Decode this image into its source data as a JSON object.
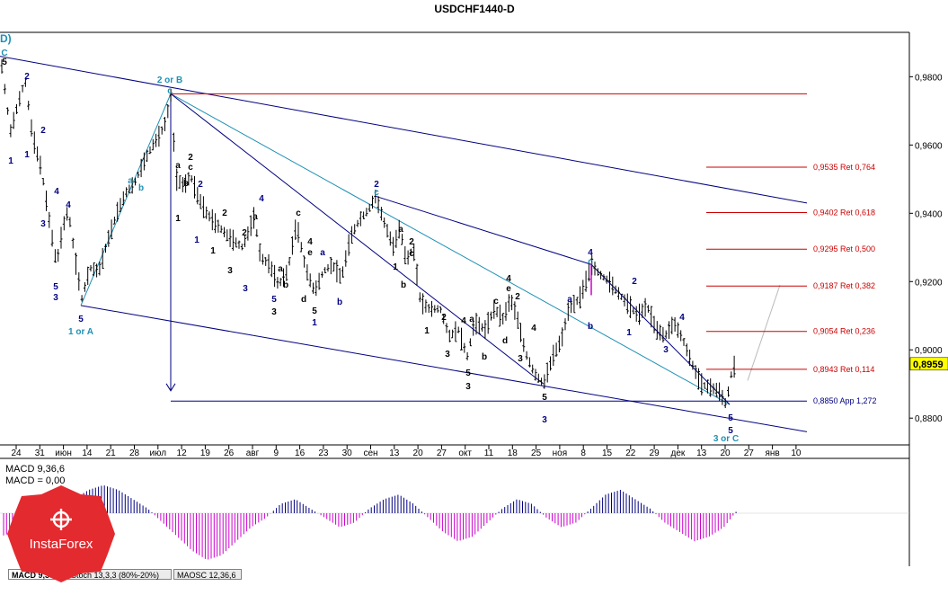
{
  "title": "USDCHF1440-D",
  "corner_label": "D)",
  "price_axis": {
    "ticks": [
      "0,9800",
      "0,9600",
      "0,9400",
      "0,9200",
      "0,9000",
      "0,8800"
    ],
    "tick_values": [
      0.98,
      0.96,
      0.94,
      0.92,
      0.9,
      0.88
    ],
    "current_price": "0,8959",
    "current_value": 0.8959
  },
  "time_axis": [
    "24",
    "31",
    "июн",
    "14",
    "21",
    "28",
    "июл",
    "12",
    "19",
    "26",
    "авг",
    "9",
    "16",
    "23",
    "30",
    "сен",
    "13",
    "20",
    "27",
    "окт",
    "11",
    "18",
    "25",
    "ноя",
    "8",
    "15",
    "22",
    "29",
    "дек",
    "13",
    "20",
    "27",
    "янв",
    "10"
  ],
  "fib_levels": [
    {
      "value": 0.9535,
      "label": "0,9535 Ret 0,764"
    },
    {
      "value": 0.9402,
      "label": "0,9402 Ret 0,618"
    },
    {
      "value": 0.9295,
      "label": "0,9295 Ret 0,500"
    },
    {
      "value": 0.9187,
      "label": "0,9187 Ret 0,382"
    },
    {
      "value": 0.9054,
      "label": "0,9054 Ret 0,236"
    },
    {
      "value": 0.8943,
      "label": "0,8943 Ret 0,114"
    }
  ],
  "app_level": {
    "value": 0.885,
    "label": "0,8850 App 1,272"
  },
  "macd": {
    "label1": "MACD 9,36,6",
    "label2": "MACD = 0,00"
  },
  "tabs": [
    "MACD 9,36,6",
    "Stoch 13,3,3 (80%-20%)",
    "MAOSC 12,36,6"
  ],
  "logo_text": "InstaForex",
  "colors": {
    "up_red": "#cc0000",
    "navy": "#000080",
    "teal": "#1e90b4",
    "macd_pos": "#000080",
    "macd_neg": "#cc00cc"
  },
  "wave_labels": [
    {
      "t": "C",
      "c": "teal"
    },
    {
      "t": "5",
      "c": "black"
    },
    {
      "t": "2",
      "c": "navy"
    },
    {
      "t": "2",
      "c": "navy"
    },
    {
      "t": "1",
      "c": "navy"
    },
    {
      "t": "1",
      "c": "navy"
    },
    {
      "t": "4",
      "c": "navy"
    },
    {
      "t": "4",
      "c": "navy"
    },
    {
      "t": "3",
      "c": "navy"
    },
    {
      "t": "5",
      "c": "navy"
    },
    {
      "t": "3",
      "c": "navy"
    },
    {
      "t": "5",
      "c": "navy"
    },
    {
      "t": "1 or A",
      "c": "teal"
    },
    {
      "t": "a",
      "c": "teal"
    },
    {
      "t": "b",
      "c": "teal"
    },
    {
      "t": "2 or B",
      "c": "teal"
    },
    {
      "t": "c",
      "c": "teal"
    },
    {
      "t": "a",
      "c": "black"
    },
    {
      "t": "2",
      "c": "black"
    },
    {
      "t": "c",
      "c": "black"
    },
    {
      "t": "1",
      "c": "black"
    },
    {
      "t": "b",
      "c": "black"
    },
    {
      "t": "2",
      "c": "navy"
    },
    {
      "t": "1",
      "c": "navy"
    },
    {
      "t": "2",
      "c": "black"
    },
    {
      "t": "1",
      "c": "black"
    },
    {
      "t": "a",
      "c": "black"
    },
    {
      "t": "2",
      "c": "black"
    },
    {
      "t": "3",
      "c": "black"
    },
    {
      "t": "4",
      "c": "navy"
    },
    {
      "t": "3",
      "c": "navy"
    },
    {
      "t": "5",
      "c": "navy"
    },
    {
      "t": "3",
      "c": "black"
    },
    {
      "t": "a",
      "c": "black"
    },
    {
      "t": "b",
      "c": "black"
    },
    {
      "t": "c",
      "c": "black"
    },
    {
      "t": "4",
      "c": "black"
    },
    {
      "t": "e",
      "c": "black"
    },
    {
      "t": "a",
      "c": "navy"
    },
    {
      "t": "d",
      "c": "black"
    },
    {
      "t": "5",
      "c": "black"
    },
    {
      "t": "1",
      "c": "navy"
    },
    {
      "t": "b",
      "c": "navy"
    },
    {
      "t": "2",
      "c": "navy"
    },
    {
      "t": "c",
      "c": "teal"
    },
    {
      "t": "a",
      "c": "black"
    },
    {
      "t": "2",
      "c": "black"
    },
    {
      "t": "c",
      "c": "black"
    },
    {
      "t": "1",
      "c": "black"
    },
    {
      "t": "b",
      "c": "black"
    },
    {
      "t": "2",
      "c": "black"
    },
    {
      "t": "1",
      "c": "black"
    },
    {
      "t": "4",
      "c": "black"
    },
    {
      "t": "a",
      "c": "black"
    },
    {
      "t": "3",
      "c": "black"
    },
    {
      "t": "5",
      "c": "black"
    },
    {
      "t": "b",
      "c": "black"
    },
    {
      "t": "3",
      "c": "black"
    },
    {
      "t": "c",
      "c": "black"
    },
    {
      "t": "4",
      "c": "black"
    },
    {
      "t": "e",
      "c": "black"
    },
    {
      "t": "2",
      "c": "black"
    },
    {
      "t": "d",
      "c": "black"
    },
    {
      "t": "4",
      "c": "black"
    },
    {
      "t": "3",
      "c": "black"
    },
    {
      "t": "5",
      "c": "black"
    },
    {
      "t": "3",
      "c": "navy"
    },
    {
      "t": "a",
      "c": "navy"
    },
    {
      "t": "4",
      "c": "navy"
    },
    {
      "t": "c",
      "c": "teal"
    },
    {
      "t": "b",
      "c": "navy"
    },
    {
      "t": "2",
      "c": "navy"
    },
    {
      "t": "1",
      "c": "navy"
    },
    {
      "t": "3",
      "c": "navy"
    },
    {
      "t": "4",
      "c": "navy"
    },
    {
      "t": "5",
      "c": "navy"
    },
    {
      "t": "5",
      "c": "navy"
    },
    {
      "t": "3 or C",
      "c": "teal"
    }
  ],
  "chart_data": {
    "type": "bar",
    "title": "USDCHF1440-D",
    "ylim": [
      0.874,
      0.993
    ],
    "price_path": [
      [
        0,
        0.978
      ],
      [
        2,
        0.983
      ],
      [
        8,
        0.971
      ],
      [
        12,
        0.964
      ],
      [
        20,
        0.972
      ],
      [
        28,
        0.979
      ],
      [
        36,
        0.963
      ],
      [
        46,
        0.953
      ],
      [
        56,
        0.936
      ],
      [
        63,
        0.925
      ],
      [
        70,
        0.936
      ],
      [
        76,
        0.941
      ],
      [
        84,
        0.926
      ],
      [
        91,
        0.915
      ],
      [
        100,
        0.924
      ],
      [
        110,
        0.923
      ],
      [
        120,
        0.932
      ],
      [
        130,
        0.94
      ],
      [
        140,
        0.946
      ],
      [
        150,
        0.949
      ],
      [
        160,
        0.955
      ],
      [
        170,
        0.96
      ],
      [
        178,
        0.963
      ],
      [
        185,
        0.967
      ],
      [
        190,
        0.975
      ],
      [
        196,
        0.95
      ],
      [
        205,
        0.948
      ],
      [
        212,
        0.951
      ],
      [
        220,
        0.945
      ],
      [
        230,
        0.94
      ],
      [
        240,
        0.937
      ],
      [
        255,
        0.933
      ],
      [
        270,
        0.93
      ],
      [
        283,
        0.939
      ],
      [
        290,
        0.927
      ],
      [
        300,
        0.925
      ],
      [
        310,
        0.919
      ],
      [
        320,
        0.923
      ],
      [
        330,
        0.937
      ],
      [
        340,
        0.924
      ],
      [
        350,
        0.917
      ],
      [
        360,
        0.923
      ],
      [
        370,
        0.925
      ],
      [
        380,
        0.921
      ],
      [
        390,
        0.933
      ],
      [
        400,
        0.938
      ],
      [
        410,
        0.941
      ],
      [
        418,
        0.945
      ],
      [
        428,
        0.937
      ],
      [
        438,
        0.93
      ],
      [
        445,
        0.936
      ],
      [
        452,
        0.926
      ],
      [
        460,
        0.93
      ],
      [
        468,
        0.914
      ],
      [
        478,
        0.912
      ],
      [
        490,
        0.912
      ],
      [
        500,
        0.904
      ],
      [
        510,
        0.906
      ],
      [
        520,
        0.898
      ],
      [
        528,
        0.908
      ],
      [
        540,
        0.906
      ],
      [
        550,
        0.912
      ],
      [
        560,
        0.909
      ],
      [
        568,
        0.915
      ],
      [
        575,
        0.91
      ],
      [
        585,
        0.899
      ],
      [
        595,
        0.893
      ],
      [
        605,
        0.89
      ],
      [
        615,
        0.898
      ],
      [
        625,
        0.903
      ],
      [
        633,
        0.912
      ],
      [
        645,
        0.915
      ],
      [
        652,
        0.92
      ],
      [
        658,
        0.925
      ],
      [
        668,
        0.922
      ],
      [
        678,
        0.92
      ],
      [
        690,
        0.916
      ],
      [
        700,
        0.913
      ],
      [
        710,
        0.91
      ],
      [
        720,
        0.913
      ],
      [
        730,
        0.906
      ],
      [
        740,
        0.904
      ],
      [
        750,
        0.908
      ],
      [
        760,
        0.903
      ],
      [
        770,
        0.896
      ],
      [
        780,
        0.89
      ],
      [
        790,
        0.889
      ],
      [
        800,
        0.888
      ],
      [
        808,
        0.884
      ],
      [
        814,
        0.893
      ],
      [
        820,
        0.897
      ]
    ],
    "macd": [
      -0.0005,
      -0.0004,
      -0.0003,
      -0.0002,
      0.0001,
      0.0003,
      0.0005,
      0.0006,
      0.0005,
      0.0003,
      0.0001,
      -0.0002,
      -0.0005,
      -0.0008,
      -0.001,
      -0.0009,
      -0.0006,
      -0.0003,
      -0.0001,
      0.0002,
      0.0003,
      0.0001,
      -0.0001,
      -0.0003,
      -0.0002,
      0.0001,
      0.0003,
      0.0004,
      0.0002,
      -0.0001,
      -0.0004,
      -0.0006,
      -0.0005,
      -0.0002,
      0.0001,
      0.0003,
      0.0002,
      -0.0001,
      -0.0003,
      -0.0002,
      0.0001,
      0.0004,
      0.0005,
      0.0003,
      0.0001,
      -0.0002,
      -0.0004,
      -0.0006,
      -0.0005,
      -0.0003,
      0.0001
    ]
  }
}
